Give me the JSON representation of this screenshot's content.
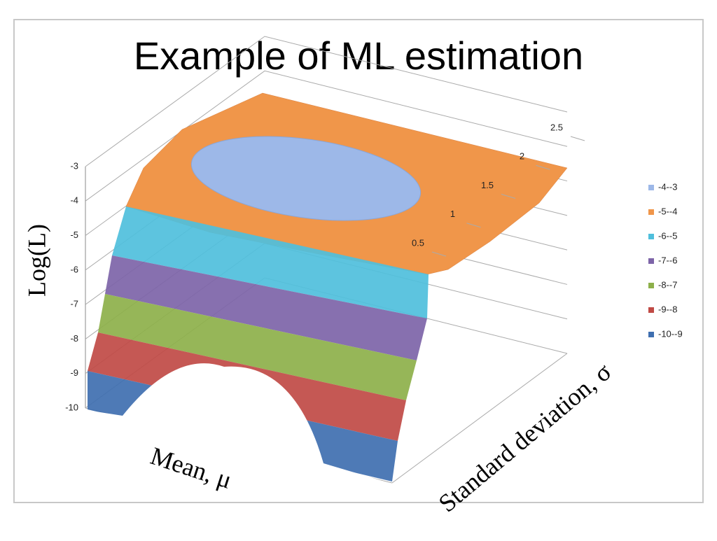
{
  "chart_data": {
    "type": "surface",
    "title": "Example of ML estimation",
    "zlabel": "Log(L)",
    "xlabel": "Mean, μ",
    "ylabel": "Standard deviation, σ",
    "zlim": [
      -10,
      -3
    ],
    "zticks": [
      -3,
      -4,
      -5,
      -6,
      -7,
      -8,
      -9,
      -10
    ],
    "ylim": [
      0.5,
      2.5
    ],
    "yticks": [
      0.5,
      1,
      1.5,
      2,
      2.5
    ],
    "series": [
      {
        "name": "-4--3",
        "color": "#9db8e8"
      },
      {
        "name": "-5--4",
        "color": "#f0964a"
      },
      {
        "name": "-6--5",
        "color": "#4fbfdc"
      },
      {
        "name": "-7--6",
        "color": "#7d64a8"
      },
      {
        "name": "-8--7",
        "color": "#8db04a"
      },
      {
        "name": "-9--8",
        "color": "#c04a45"
      },
      {
        "name": "-10--9",
        "color": "#3f6fb0"
      }
    ]
  }
}
